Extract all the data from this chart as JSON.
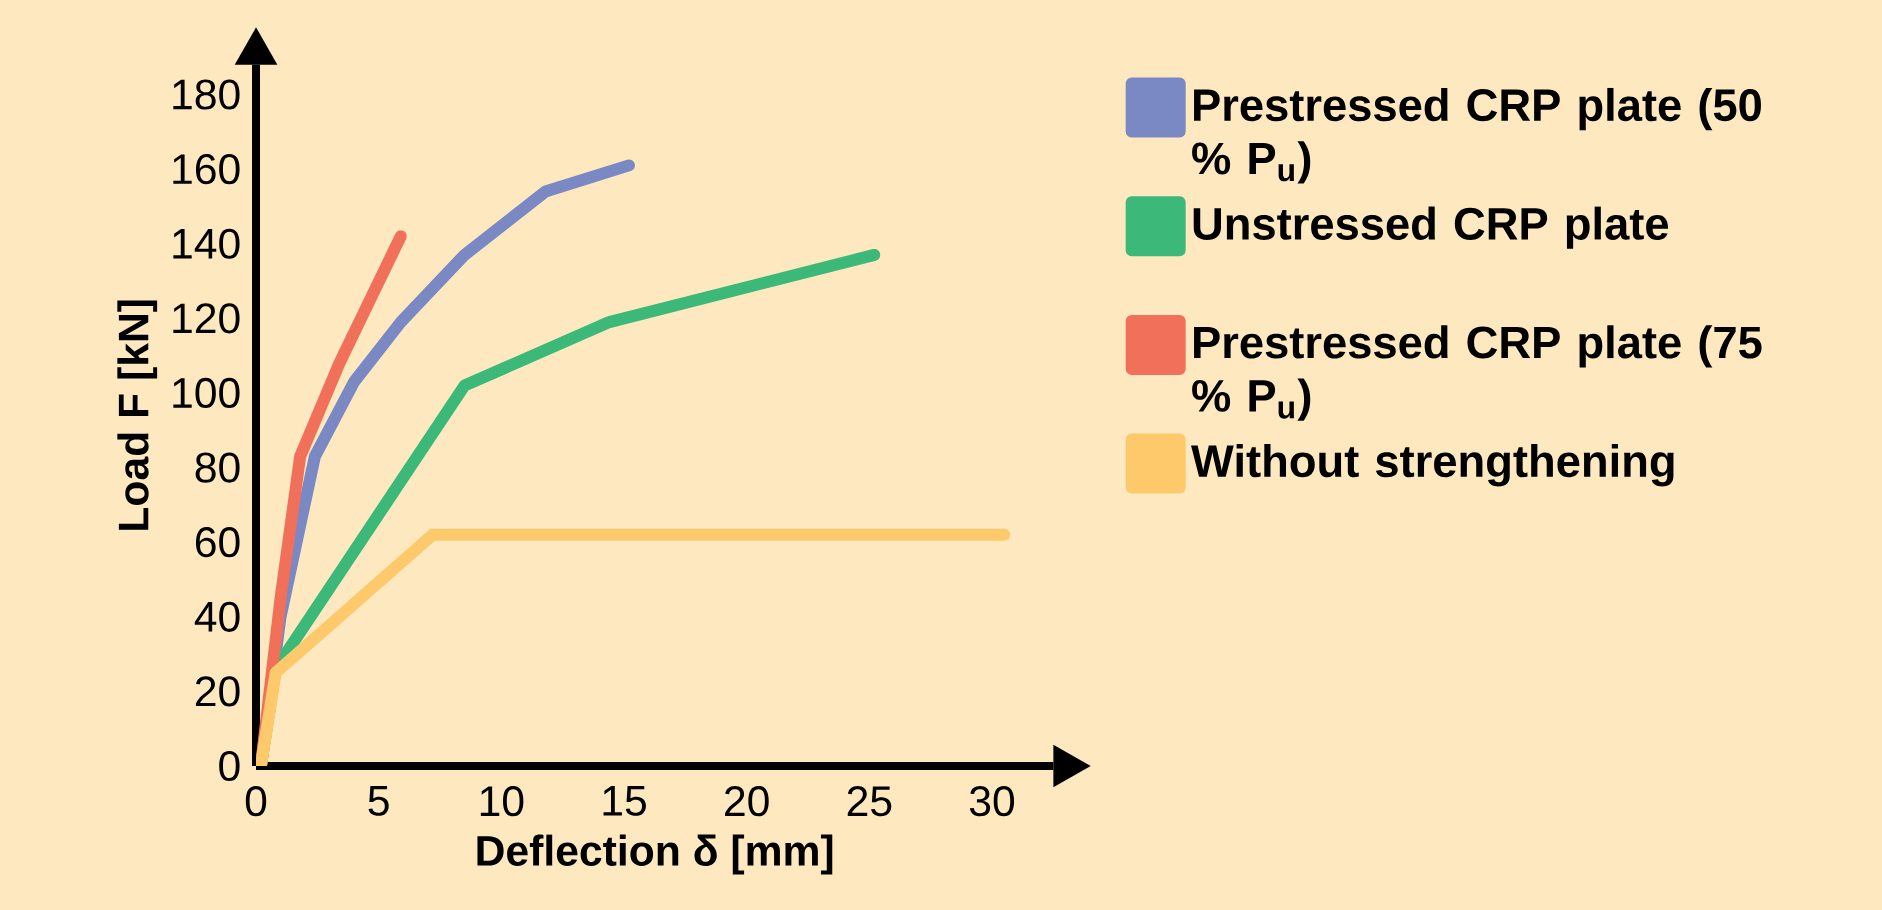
{
  "chart_data": {
    "type": "line",
    "xlabel": "Deflection δ [mm]",
    "ylabel": "Load F [kN]",
    "xlim": [
      0,
      32.5
    ],
    "ylim": [
      0,
      188
    ],
    "xticks": [
      0,
      5,
      10,
      15,
      20,
      25,
      30
    ],
    "yticks": [
      0,
      20,
      40,
      60,
      80,
      100,
      120,
      140,
      160,
      180
    ],
    "legend": "right",
    "grid": false,
    "marker": "none",
    "line_style": "solid",
    "series": [
      {
        "name": "Prestressed CRP plate (50 % P$_{u}$)",
        "color": "#7a88c4",
        "x": [
          0.2,
          1.0,
          2.4,
          4.0,
          5.9,
          8.5,
          11.8,
          15.2
        ],
        "values": [
          0,
          40,
          83,
          103,
          119,
          137,
          154,
          161
        ]
      },
      {
        "name": "Unstressed CRP plate",
        "color": "#3cb878",
        "x": [
          0.2,
          0.8,
          8.5,
          14.4,
          25.2
        ],
        "values": [
          0,
          26,
          102,
          119,
          137
        ]
      },
      {
        "name": "Prestressed CRP plate (75 % P$_{u}$)",
        "color": "#f07059",
        "x": [
          0.2,
          1.0,
          1.8,
          3.4,
          5.9
        ],
        "values": [
          0,
          45,
          83,
          108,
          142
        ]
      },
      {
        "name": "Without strengthening",
        "color": "#fdc96a",
        "x": [
          0.2,
          0.8,
          7.2,
          30.5
        ],
        "values": [
          0,
          25,
          62,
          62
        ]
      }
    ]
  }
}
